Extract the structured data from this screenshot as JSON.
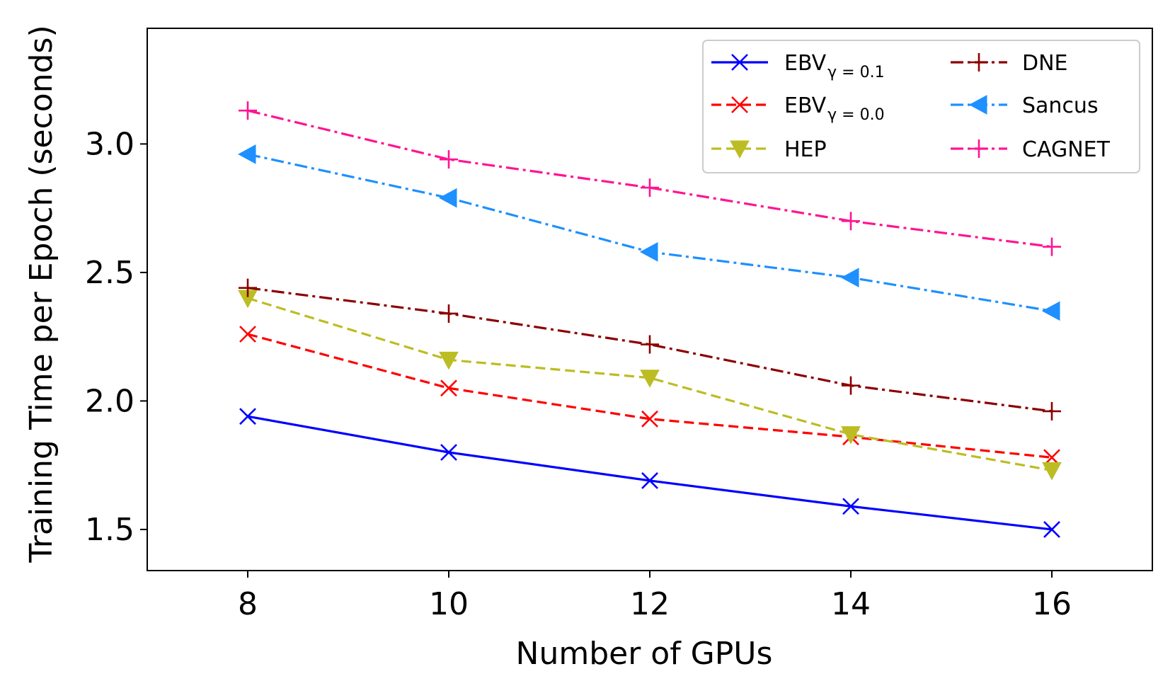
{
  "chart_data": {
    "type": "line",
    "title": "",
    "xlabel": "Number of GPUs",
    "ylabel": "Training Time per Epoch (seconds)",
    "x": [
      8,
      10,
      12,
      14,
      16
    ],
    "xlim": [
      7,
      17
    ],
    "ylim": [
      1.34,
      3.45
    ],
    "xticks": [
      "8",
      "10",
      "12",
      "14",
      "16"
    ],
    "xtick_values": [
      8,
      10,
      12,
      14,
      16
    ],
    "yticks": [
      "1.5",
      "2.0",
      "2.5",
      "3.0"
    ],
    "ytick_values": [
      1.5,
      2.0,
      2.5,
      3.0
    ],
    "legend_position": "top-right",
    "series": [
      {
        "name": "EBV",
        "subscript": "γ = 0.1",
        "values": [
          1.94,
          1.8,
          1.69,
          1.59,
          1.5
        ],
        "color": "#0000ff",
        "dash": "solid",
        "marker": "x"
      },
      {
        "name": "EBV",
        "subscript": "γ = 0.0",
        "values": [
          2.26,
          2.05,
          1.93,
          1.86,
          1.78
        ],
        "color": "#ff0000",
        "dash": "dashed",
        "marker": "x"
      },
      {
        "name": "HEP",
        "subscript": "",
        "values": [
          2.4,
          2.16,
          2.09,
          1.87,
          1.73
        ],
        "color": "#bcbd22",
        "dash": "dashed",
        "marker": "triangle-down"
      },
      {
        "name": "DNE",
        "subscript": "",
        "values": [
          2.44,
          2.34,
          2.22,
          2.06,
          1.96
        ],
        "color": "#8b0000",
        "dash": "dashdot",
        "marker": "plus"
      },
      {
        "name": "Sancus",
        "subscript": "",
        "values": [
          2.96,
          2.79,
          2.58,
          2.48,
          2.35
        ],
        "color": "#1e90ff",
        "dash": "dashdot",
        "marker": "triangle-left"
      },
      {
        "name": "CAGNET",
        "subscript": "",
        "values": [
          3.13,
          2.94,
          2.83,
          2.7,
          2.6
        ],
        "color": "#ff1493",
        "dash": "dashdot",
        "marker": "plus"
      }
    ]
  }
}
